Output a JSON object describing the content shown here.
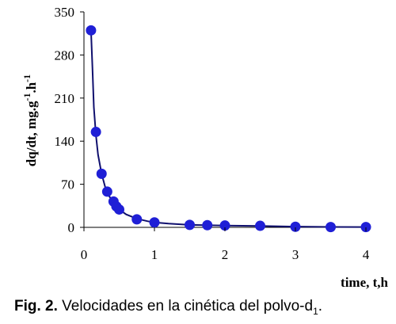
{
  "chart_data": {
    "type": "line",
    "title": "",
    "xlabel": "time, t,h",
    "ylabel": {
      "prefix": "dq/dt, mg.g",
      "sup1": "-1",
      "mid": ".h",
      "sup2": "-1"
    },
    "xlim": [
      0,
      4
    ],
    "ylim": [
      0,
      350
    ],
    "xticks": [
      "0",
      "1",
      "2",
      "3",
      "4"
    ],
    "yticks": [
      "0",
      "70",
      "140",
      "210",
      "280",
      "350"
    ],
    "grid": false,
    "legend": "none",
    "marker_color": "#1f1fd6",
    "line_color": "#10106e",
    "series": [
      {
        "x": [
          0.1,
          0.17,
          0.25,
          0.33,
          0.42,
          0.46,
          0.5,
          0.75,
          1.0,
          1.5,
          1.75,
          2.0,
          2.5,
          3.0,
          3.5,
          4.0
        ],
        "y": [
          320,
          155,
          87,
          58,
          42,
          34,
          29,
          13,
          8,
          4,
          3.5,
          3,
          2.5,
          1,
          0.5,
          0.5
        ]
      }
    ],
    "smooth_curve": {
      "x": [
        0.1,
        0.12,
        0.14,
        0.17,
        0.2,
        0.25,
        0.3,
        0.35,
        0.42,
        0.5,
        0.6,
        0.75,
        0.9,
        1.0,
        1.2,
        1.5,
        2.0,
        2.5,
        3.0,
        3.5,
        4.0
      ],
      "y": [
        320,
        260,
        195,
        150,
        118,
        87,
        66,
        52,
        40,
        29,
        21,
        14,
        10,
        8,
        6,
        4,
        3,
        2.2,
        1.2,
        0.7,
        0.5
      ]
    }
  },
  "caption": {
    "label": "Fig. 2.",
    "text": "  Velocidades en la cinética del polvo-d",
    "sub": "1",
    "end": "."
  }
}
